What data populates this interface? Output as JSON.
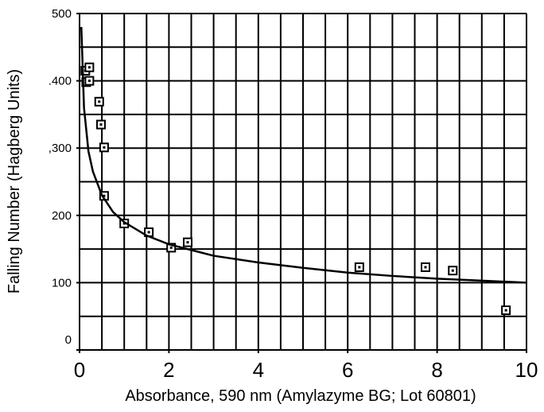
{
  "chart_data": {
    "type": "scatter",
    "xlabel": "Absorbance, 590 nm (Amylazyme BG; Lot 60801)",
    "ylabel": "Falling Number (Hagberg Units)",
    "xlim": [
      0,
      10
    ],
    "ylim": [
      0,
      500
    ],
    "xticks": [
      0,
      2,
      4,
      6,
      8,
      10
    ],
    "yticks": [
      0,
      100,
      200,
      {
        "value": 300,
        "label": ",300"
      },
      {
        "value": 400,
        "label": ".400"
      },
      500
    ],
    "xgrid": [
      0,
      0.5,
      1,
      1.5,
      2,
      2.5,
      3,
      3.5,
      4,
      4.5,
      5,
      5.5,
      6,
      6.5,
      7,
      7.5,
      8,
      8.5,
      9,
      9.5,
      10
    ],
    "ygrid": [
      0,
      50,
      100,
      150,
      200,
      250,
      300,
      350,
      400,
      450,
      500
    ],
    "grid": true,
    "series": [
      {
        "type": "scatter",
        "color": "#000000",
        "x": [
          0.13,
          0.22,
          0.15,
          0.22,
          0.44,
          0.48,
          0.55,
          0.55,
          1.0,
          1.55,
          2.05,
          2.42,
          6.26,
          7.74,
          8.35,
          9.54
        ],
        "values": [
          415,
          420,
          398,
          400,
          369,
          335,
          301,
          229,
          188,
          175,
          152,
          160,
          123,
          123,
          118,
          59
        ]
      },
      {
        "type": "line",
        "color": "#000000",
        "x": [
          0.04,
          0.1,
          0.2,
          0.3,
          0.5,
          0.75,
          1,
          1.5,
          2,
          3,
          4,
          5,
          6,
          7,
          8,
          9,
          10
        ],
        "values": [
          480,
          360,
          295,
          265,
          230,
          205,
          190,
          170,
          157,
          140,
          130,
          122,
          115,
          110,
          106,
          103,
          100
        ]
      }
    ]
  }
}
